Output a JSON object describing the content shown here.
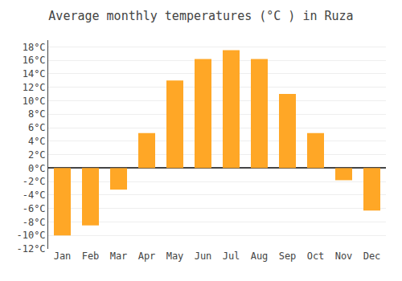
{
  "chart_data": {
    "type": "bar",
    "title": "Average monthly temperatures (°C ) in Ruza",
    "categories": [
      "Jan",
      "Feb",
      "Mar",
      "Apr",
      "May",
      "Jun",
      "Jul",
      "Aug",
      "Sep",
      "Oct",
      "Nov",
      "Dec"
    ],
    "values": [
      -10,
      -8.5,
      -3.2,
      5.2,
      13.0,
      16.2,
      17.5,
      16.2,
      11.0,
      5.2,
      -1.8,
      -6.3
    ],
    "color": "#FFA726",
    "ylim": [
      -12,
      19
    ],
    "yticks": [
      {
        "value": -12,
        "label": "-12°C"
      },
      {
        "value": -10,
        "label": "-10°C"
      },
      {
        "value": -8,
        "label": "-8°C"
      },
      {
        "value": -6,
        "label": "-6°C"
      },
      {
        "value": -4,
        "label": "-4°C"
      },
      {
        "value": -2,
        "label": "-2°C"
      },
      {
        "value": 0,
        "label": "0°C"
      },
      {
        "value": 2,
        "label": "2°C"
      },
      {
        "value": 4,
        "label": "4°C"
      },
      {
        "value": 6,
        "label": "6°C"
      },
      {
        "value": 8,
        "label": "8°C"
      },
      {
        "value": 10,
        "label": "10°C"
      },
      {
        "value": 12,
        "label": "12°C"
      },
      {
        "value": 14,
        "label": "14°C"
      },
      {
        "value": 16,
        "label": "16°C"
      },
      {
        "value": 18,
        "label": "18°C"
      }
    ],
    "grid": true
  }
}
